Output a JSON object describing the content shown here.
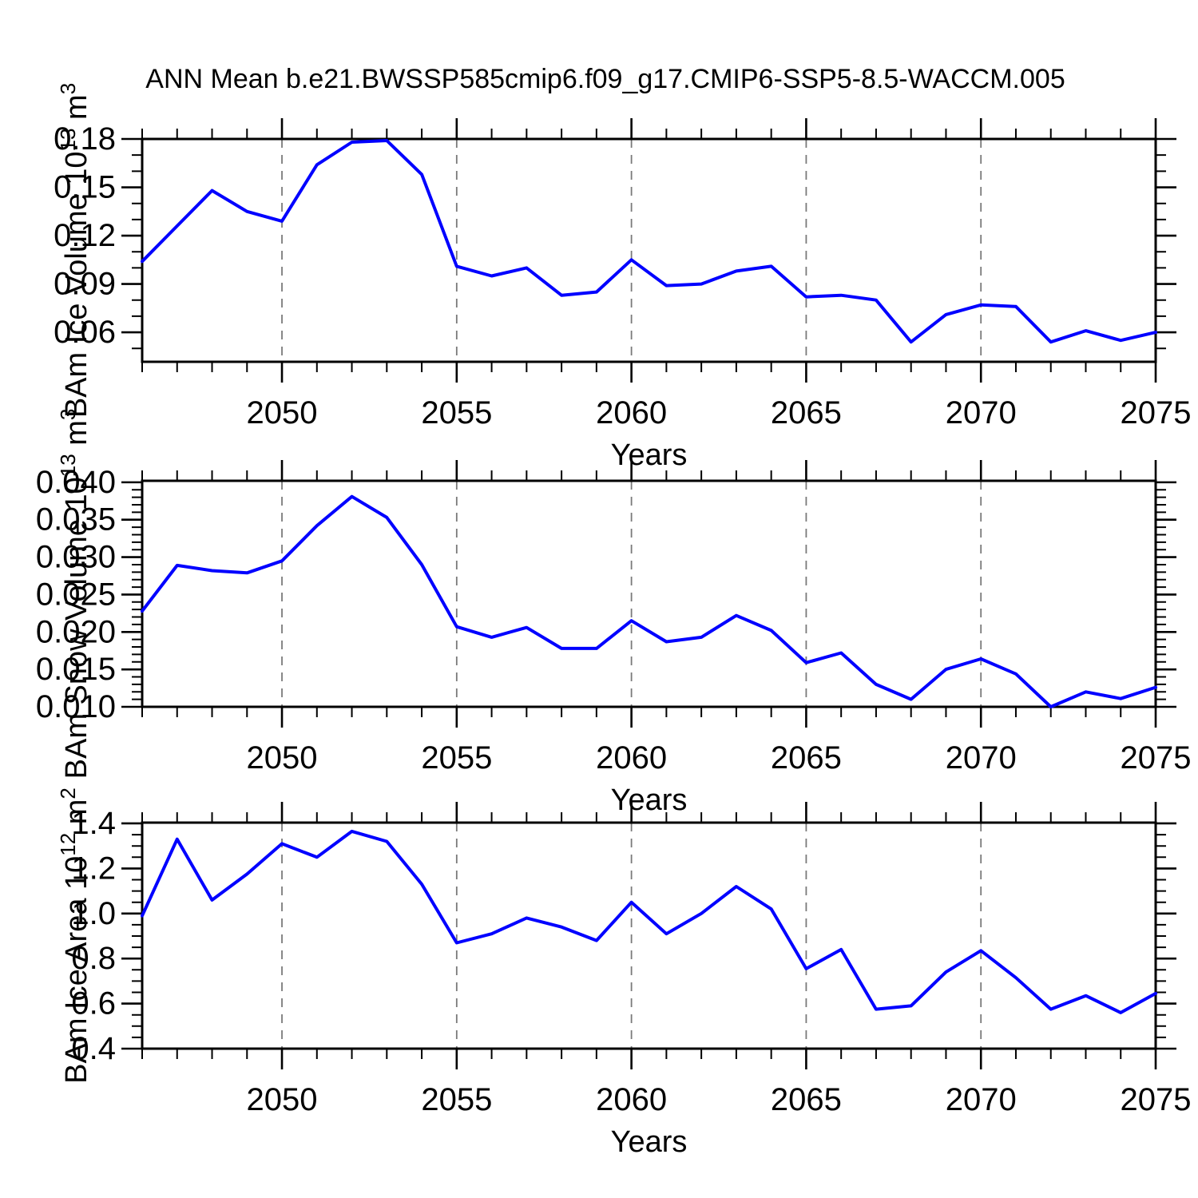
{
  "title": "ANN Mean b.e21.BWSSP585cmip6.f09_g17.CMIP6-SSP5-8.5-WACCM.005",
  "colors": {
    "line": "#0000ff",
    "axis": "#000000",
    "grid": "#7a7a7a",
    "background": "#ffffff",
    "text": "#000000"
  },
  "x_axis": {
    "title": "Years",
    "range": [
      2046,
      2075
    ],
    "major_ticks": [
      2050,
      2055,
      2060,
      2065,
      2070,
      2075
    ],
    "tick_labels": [
      "2050",
      "2055",
      "2060",
      "2065",
      "2070",
      "2075"
    ],
    "gridline_years": [
      2050,
      2055,
      2060,
      2065,
      2070
    ],
    "minor_step_years": 1
  },
  "chart_data": [
    {
      "id": "ice-volume",
      "type": "line",
      "title": "",
      "xlabel": "Years",
      "ylabel_plain": "BAm Ice Volume 10^13 m^3",
      "ylabel_segments": [
        {
          "t": "BAm Ice Volume 10"
        },
        {
          "t": "13",
          "sup": true
        },
        {
          "t": " m"
        },
        {
          "t": "3",
          "sup": true
        }
      ],
      "x": [
        2046,
        2047,
        2048,
        2049,
        2050,
        2051,
        2052,
        2053,
        2054,
        2055,
        2056,
        2057,
        2058,
        2059,
        2060,
        2061,
        2062,
        2063,
        2064,
        2065,
        2066,
        2067,
        2068,
        2069,
        2070,
        2071,
        2072,
        2073,
        2074,
        2075
      ],
      "values": [
        0.104,
        0.126,
        0.148,
        0.135,
        0.129,
        0.164,
        0.178,
        0.179,
        0.158,
        0.101,
        0.095,
        0.1,
        0.083,
        0.085,
        0.105,
        0.089,
        0.09,
        0.098,
        0.101,
        0.082,
        0.083,
        0.08,
        0.054,
        0.071,
        0.077,
        0.076,
        0.054,
        0.061,
        0.055,
        0.06
      ],
      "ylim": [
        0.0417,
        0.18
      ],
      "yticks_major": [
        0.18,
        0.15,
        0.12,
        0.09,
        0.06
      ],
      "ytick_labels": [
        "0.18",
        "0.15",
        "0.12",
        "0.09",
        "0.06"
      ],
      "yminor_step": 0.01,
      "grid": "vertical-dashed",
      "legend": "none"
    },
    {
      "id": "snow-volume",
      "type": "line",
      "title": "",
      "xlabel": "Years",
      "ylabel_plain": "BAm Snow Volume 10^13 m^3",
      "ylabel_segments": [
        {
          "t": "BAm Snow Volume 10"
        },
        {
          "t": "13",
          "sup": true
        },
        {
          "t": " m"
        },
        {
          "t": "3",
          "sup": true
        }
      ],
      "x": [
        2046,
        2047,
        2048,
        2049,
        2050,
        2051,
        2052,
        2053,
        2054,
        2055,
        2056,
        2057,
        2058,
        2059,
        2060,
        2061,
        2062,
        2063,
        2064,
        2065,
        2066,
        2067,
        2068,
        2069,
        2070,
        2071,
        2072,
        2073,
        2074,
        2075
      ],
      "values": [
        0.0228,
        0.0289,
        0.0282,
        0.0279,
        0.0295,
        0.0342,
        0.0381,
        0.0353,
        0.029,
        0.0207,
        0.0193,
        0.0206,
        0.0178,
        0.0178,
        0.0215,
        0.0187,
        0.0193,
        0.0222,
        0.0202,
        0.0159,
        0.0172,
        0.013,
        0.011,
        0.015,
        0.0164,
        0.0144,
        0.01,
        0.012,
        0.0111,
        0.0126
      ],
      "ylim": [
        0.01,
        0.0402
      ],
      "yticks_major": [
        0.04,
        0.035,
        0.03,
        0.025,
        0.02,
        0.015,
        0.01
      ],
      "ytick_labels": [
        "0.040",
        "0.035",
        "0.030",
        "0.025",
        "0.020",
        "0.015",
        "0.010"
      ],
      "yminor_step": 0.001,
      "grid": "vertical-dashed",
      "legend": "none"
    },
    {
      "id": "ice-area",
      "type": "line",
      "title": "",
      "xlabel": "Years",
      "ylabel_plain": "BAm Ice Area 10^12 m^2",
      "ylabel_segments": [
        {
          "t": "BAm Ice Area 10"
        },
        {
          "t": "12",
          "sup": true
        },
        {
          "t": " m"
        },
        {
          "t": "2",
          "sup": true
        }
      ],
      "x": [
        2046,
        2047,
        2048,
        2049,
        2050,
        2051,
        2052,
        2053,
        2054,
        2055,
        2056,
        2057,
        2058,
        2059,
        2060,
        2061,
        2062,
        2063,
        2064,
        2065,
        2066,
        2067,
        2068,
        2069,
        2070,
        2071,
        2072,
        2073,
        2074,
        2075
      ],
      "values": [
        0.99,
        1.33,
        1.06,
        1.175,
        1.31,
        1.25,
        1.365,
        1.32,
        1.13,
        0.87,
        0.91,
        0.98,
        0.94,
        0.88,
        1.05,
        0.91,
        1.0,
        1.12,
        1.02,
        0.755,
        0.84,
        0.575,
        0.59,
        0.74,
        0.835,
        0.715,
        0.575,
        0.635,
        0.56,
        0.645
      ],
      "ylim": [
        0.4,
        1.4035
      ],
      "yticks_major": [
        1.4,
        1.2,
        1.0,
        0.8,
        0.6,
        0.4
      ],
      "ytick_labels": [
        "1.4",
        "1.2",
        "1.0",
        "0.8",
        "0.6",
        "0.4"
      ],
      "yminor_step": 0.05,
      "grid": "vertical-dashed",
      "legend": "none"
    }
  ]
}
